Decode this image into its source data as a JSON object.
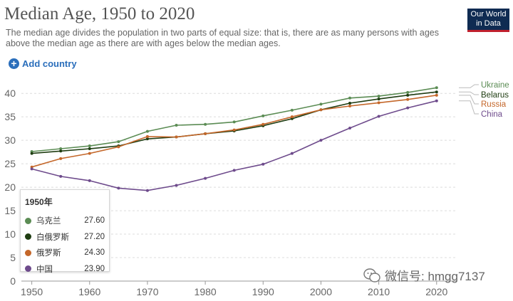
{
  "header": {
    "title": "Median Age, 1950 to 2020",
    "subtitle": "The median age divides the population in two parts of equal size: that is, there are as many persons with ages above the median age as there are with ages below the median ages.",
    "logo_line1": "Our World",
    "logo_line2": "in Data"
  },
  "controls": {
    "add_country_label": "Add country"
  },
  "colors": {
    "ukraine": "#5b8c54",
    "belarus": "#1f3d12",
    "russia": "#c4672a",
    "china": "#6e4b8c",
    "grid": "#dcdcdc",
    "axis_text": "#666666"
  },
  "tooltip": {
    "header": "1950年",
    "rows": [
      {
        "name": "乌克兰",
        "value": "27.60",
        "color": "#5b8c54"
      },
      {
        "name": "白俄罗斯",
        "value": "27.20",
        "color": "#1f3d12"
      },
      {
        "name": "俄罗斯",
        "value": "24.30",
        "color": "#c4672a"
      },
      {
        "name": "中国",
        "value": "23.90",
        "color": "#6e4b8c"
      }
    ]
  },
  "watermark": {
    "text": "微信号: hmgg7137"
  },
  "chart_data": {
    "type": "line",
    "title": "Median Age, 1950 to 2020",
    "xlabel": "",
    "ylabel": "",
    "xlim": [
      1950,
      2020
    ],
    "ylim": [
      0,
      42
    ],
    "x_ticks": [
      1950,
      1960,
      1970,
      1980,
      1990,
      2000,
      2010,
      2020
    ],
    "x_tick_labels": [
      "1950",
      "1960",
      "1970",
      "1980",
      "1990",
      "2000",
      "2010",
      "2020"
    ],
    "y_ticks": [
      0,
      5,
      10,
      15,
      20,
      25,
      30,
      35,
      40
    ],
    "y_tick_labels": [
      "0",
      "5",
      "10",
      "15",
      "20",
      "25",
      "30",
      "35",
      "40"
    ],
    "grid": true,
    "legend": "right-end-labels",
    "x": [
      1950,
      1955,
      1960,
      1965,
      1970,
      1975,
      1980,
      1985,
      1990,
      1995,
      2000,
      2005,
      2010,
      2015,
      2020
    ],
    "series": [
      {
        "name": "Ukraine",
        "color": "#5b8c54",
        "values": [
          27.6,
          28.2,
          28.8,
          29.7,
          31.9,
          33.2,
          33.4,
          33.9,
          35.2,
          36.4,
          37.7,
          39.0,
          39.4,
          40.2,
          41.2
        ]
      },
      {
        "name": "Belarus",
        "color": "#1f3d12",
        "values": [
          27.2,
          27.7,
          28.2,
          28.8,
          30.3,
          30.7,
          31.4,
          32.0,
          33.1,
          34.6,
          36.5,
          37.9,
          38.8,
          39.6,
          40.3
        ]
      },
      {
        "name": "Russia",
        "color": "#c4672a",
        "values": [
          24.3,
          26.1,
          27.2,
          28.6,
          30.8,
          30.7,
          31.4,
          32.2,
          33.4,
          35.0,
          36.5,
          37.3,
          38.0,
          38.7,
          39.6
        ]
      },
      {
        "name": "China",
        "color": "#6e4b8c",
        "values": [
          23.9,
          22.3,
          21.4,
          19.8,
          19.3,
          20.4,
          21.9,
          23.6,
          24.9,
          27.2,
          30.0,
          32.6,
          35.1,
          36.9,
          38.4
        ]
      }
    ]
  }
}
